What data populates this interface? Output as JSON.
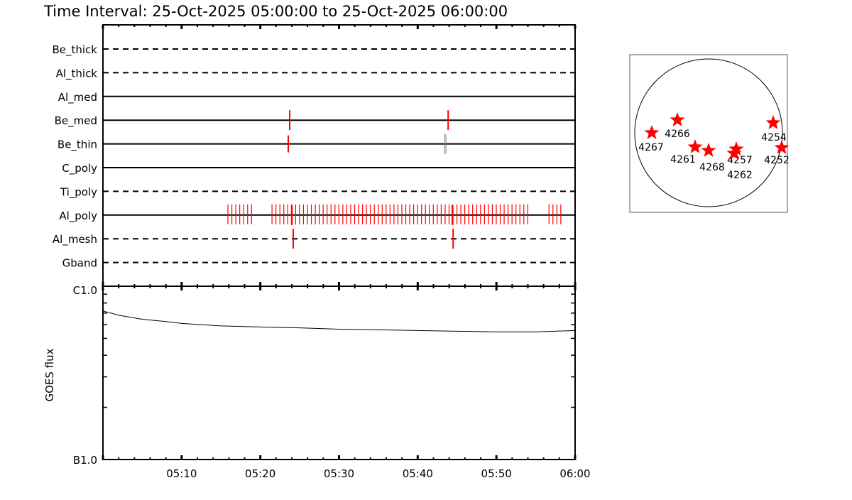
{
  "title": "Time Interval: 25-Oct-2025 05:00:00 to 25-Oct-2025 06:00:00",
  "colors": {
    "obs": "#ff0000",
    "alt": "#808080",
    "axis": "#000000"
  },
  "chart_data": [
    {
      "type": "timeline",
      "time_range": [
        "05:00:00",
        "06:00:00"
      ],
      "rows": [
        {
          "label": "Be_thick",
          "style": "dashed",
          "obs": []
        },
        {
          "label": "Al_thick",
          "style": "dashed",
          "obs": []
        },
        {
          "label": "Al_med",
          "style": "solid",
          "obs": []
        },
        {
          "label": "Be_med",
          "style": "solid",
          "obs": [
            {
              "t": "05:23:44"
            },
            {
              "t": "05:43:52"
            }
          ]
        },
        {
          "label": "Be_thin",
          "style": "solid",
          "obs": [
            {
              "t": "05:23:33",
              "short": true
            },
            {
              "t": "05:43:25",
              "color": "alt"
            },
            {
              "t": "05:43:35",
              "color": "alt"
            }
          ]
        },
        {
          "label": "C_poly",
          "style": "solid",
          "obs": []
        },
        {
          "label": "Ti_poly",
          "style": "dashed",
          "obs": []
        },
        {
          "label": "Al_poly",
          "style": "solid",
          "obs": [
            {
              "t": "05:24:00",
              "bold": true
            },
            {
              "t": "05:44:25",
              "bold": true
            }
          ],
          "groups": [
            {
              "start": "05:15:53",
              "count": 7,
              "cadence_s": 30
            },
            {
              "start": "05:21:29",
              "count": 66,
              "cadence_s": 30
            },
            {
              "start": "05:56:41",
              "count": 4,
              "cadence_s": 30
            }
          ]
        },
        {
          "label": "Al_mesh",
          "style": "dashed",
          "obs": [
            {
              "t": "05:24:11"
            },
            {
              "t": "05:44:30"
            }
          ]
        },
        {
          "label": "Gband",
          "style": "dashed",
          "obs": []
        }
      ]
    },
    {
      "type": "line",
      "ylabel": "GOES flux",
      "yscale": "log",
      "ylim": [
        1e-07,
        1e-06
      ],
      "ytick_labels": [
        "B1.0",
        "C1.0"
      ],
      "xtick_labels": [
        "05:10",
        "05:20",
        "05:30",
        "05:40",
        "05:50",
        "06:00"
      ],
      "x": [
        "05:00",
        "05:02",
        "05:05",
        "05:08",
        "05:10",
        "05:15",
        "05:20",
        "05:25",
        "05:30",
        "05:35",
        "05:40",
        "05:45",
        "05:50",
        "05:55",
        "06:00"
      ],
      "y": [
        7.2e-07,
        6.8e-07,
        6.45e-07,
        6.25e-07,
        6.1e-07,
        5.9e-07,
        5.82e-07,
        5.75e-07,
        5.65e-07,
        5.6e-07,
        5.55e-07,
        5.5e-07,
        5.45e-07,
        5.45e-07,
        5.55e-07
      ]
    }
  ],
  "sun_map": {
    "regions": [
      "4267",
      "4266",
      "4261",
      "4268",
      "4257",
      "4262",
      "4254",
      "4252"
    ]
  }
}
